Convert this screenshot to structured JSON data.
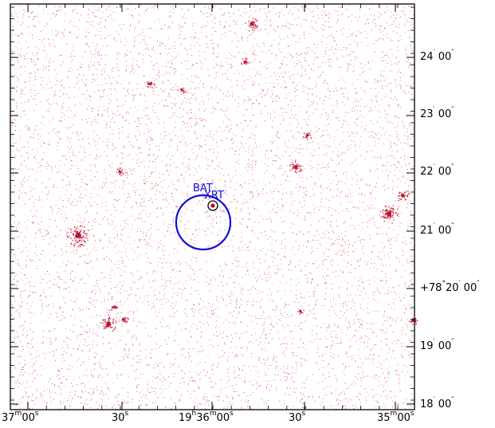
{
  "image": {
    "colors": {
      "background": "#ffffff",
      "frame": "#000000",
      "photons": "#e03b3b",
      "bat_circle": "#1010d8",
      "xrt_circle": "#000000",
      "xrt_source": "#b01030"
    }
  },
  "annotations": {
    "bat_label": "BAT",
    "xrt_label": "XRT"
  },
  "dec_axis": {
    "labels": [
      {
        "deg": "",
        "min": "24",
        "sec": "00",
        "text": "24′ 00″"
      },
      {
        "deg": "",
        "min": "23",
        "sec": "00",
        "text": "23′ 00″"
      },
      {
        "deg": "",
        "min": "22",
        "sec": "00",
        "text": "22′ 00″"
      },
      {
        "deg": "",
        "min": "21",
        "sec": "00",
        "text": "21′ 00″"
      },
      {
        "deg": "+78",
        "min": "20",
        "sec": "00",
        "text": "+78°20′ 00″"
      },
      {
        "deg": "",
        "min": "19",
        "sec": "00",
        "text": "19′ 00″"
      },
      {
        "deg": "",
        "min": "18",
        "sec": "00",
        "text": "18′ 00″"
      }
    ]
  },
  "ra_axis": {
    "labels": [
      {
        "text": "37m00s"
      },
      {
        "text": "30s"
      },
      {
        "text": "19h36m00s"
      },
      {
        "text": "30s"
      },
      {
        "text": "35m00s"
      }
    ]
  }
}
